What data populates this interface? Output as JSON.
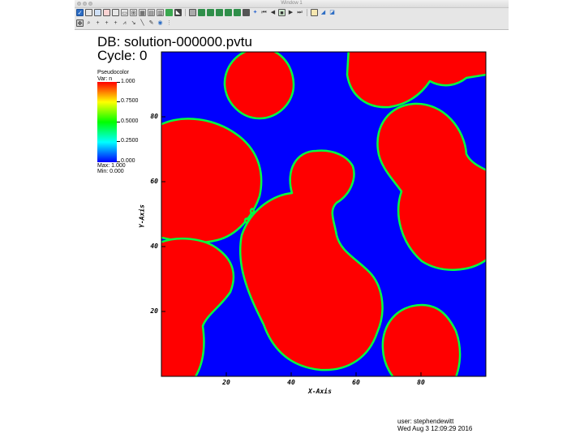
{
  "window": {
    "title": "Window 1"
  },
  "header": {
    "database": "DB: solution-000000.pvtu",
    "cycle": "Cycle: 0"
  },
  "legend": {
    "plot_type": "Pseudocolor",
    "variable": "Var: n",
    "tick_labels": [
      "1.000",
      "0.7500",
      "0.5000",
      "0.2500",
      "0.000"
    ],
    "max_label": "Max:  1.000",
    "min_label": "Min:  0.000"
  },
  "colors": {
    "field_low": "#0000ff",
    "field_high": "#ff0000",
    "interface": "#00ff40"
  },
  "axes": {
    "xlabel": "X-Axis",
    "ylabel": "Y-Axis",
    "xticks": [
      "20",
      "40",
      "60",
      "80"
    ],
    "yticks": [
      "20",
      "40",
      "60",
      "80"
    ]
  },
  "footer": {
    "user": "user: stephendewitt",
    "date": "Wed Aug  3 12:09:29 2016"
  }
}
